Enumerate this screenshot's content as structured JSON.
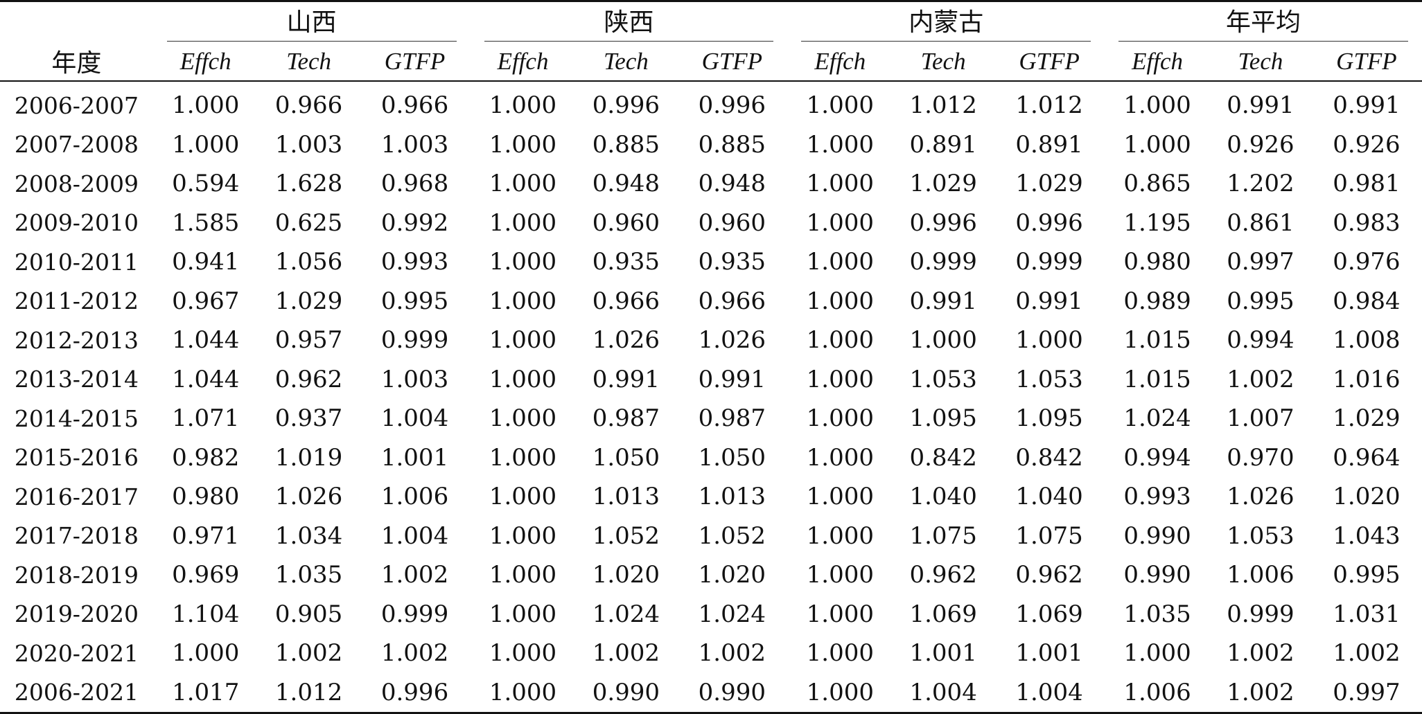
{
  "header": {
    "year_label": "年度",
    "groups": [
      "山西",
      "陕西",
      "内蒙古",
      "年平均"
    ],
    "sub_columns": [
      "Effch",
      "Tech",
      "GTFP"
    ]
  },
  "rows": [
    {
      "year": "2006-2007",
      "values": [
        "1.000",
        "0.966",
        "0.966",
        "1.000",
        "0.996",
        "0.996",
        "1.000",
        "1.012",
        "1.012",
        "1.000",
        "0.991",
        "0.991"
      ]
    },
    {
      "year": "2007-2008",
      "values": [
        "1.000",
        "1.003",
        "1.003",
        "1.000",
        "0.885",
        "0.885",
        "1.000",
        "0.891",
        "0.891",
        "1.000",
        "0.926",
        "0.926"
      ]
    },
    {
      "year": "2008-2009",
      "values": [
        "0.594",
        "1.628",
        "0.968",
        "1.000",
        "0.948",
        "0.948",
        "1.000",
        "1.029",
        "1.029",
        "0.865",
        "1.202",
        "0.981"
      ]
    },
    {
      "year": "2009-2010",
      "values": [
        "1.585",
        "0.625",
        "0.992",
        "1.000",
        "0.960",
        "0.960",
        "1.000",
        "0.996",
        "0.996",
        "1.195",
        "0.861",
        "0.983"
      ]
    },
    {
      "year": "2010-2011",
      "values": [
        "0.941",
        "1.056",
        "0.993",
        "1.000",
        "0.935",
        "0.935",
        "1.000",
        "0.999",
        "0.999",
        "0.980",
        "0.997",
        "0.976"
      ]
    },
    {
      "year": "2011-2012",
      "values": [
        "0.967",
        "1.029",
        "0.995",
        "1.000",
        "0.966",
        "0.966",
        "1.000",
        "0.991",
        "0.991",
        "0.989",
        "0.995",
        "0.984"
      ]
    },
    {
      "year": "2012-2013",
      "values": [
        "1.044",
        "0.957",
        "0.999",
        "1.000",
        "1.026",
        "1.026",
        "1.000",
        "1.000",
        "1.000",
        "1.015",
        "0.994",
        "1.008"
      ]
    },
    {
      "year": "2013-2014",
      "values": [
        "1.044",
        "0.962",
        "1.003",
        "1.000",
        "0.991",
        "0.991",
        "1.000",
        "1.053",
        "1.053",
        "1.015",
        "1.002",
        "1.016"
      ]
    },
    {
      "year": "2014-2015",
      "values": [
        "1.071",
        "0.937",
        "1.004",
        "1.000",
        "0.987",
        "0.987",
        "1.000",
        "1.095",
        "1.095",
        "1.024",
        "1.007",
        "1.029"
      ]
    },
    {
      "year": "2015-2016",
      "values": [
        "0.982",
        "1.019",
        "1.001",
        "1.000",
        "1.050",
        "1.050",
        "1.000",
        "0.842",
        "0.842",
        "0.994",
        "0.970",
        "0.964"
      ]
    },
    {
      "year": "2016-2017",
      "values": [
        "0.980",
        "1.026",
        "1.006",
        "1.000",
        "1.013",
        "1.013",
        "1.000",
        "1.040",
        "1.040",
        "0.993",
        "1.026",
        "1.020"
      ]
    },
    {
      "year": "2017-2018",
      "values": [
        "0.971",
        "1.034",
        "1.004",
        "1.000",
        "1.052",
        "1.052",
        "1.000",
        "1.075",
        "1.075",
        "0.990",
        "1.053",
        "1.043"
      ]
    },
    {
      "year": "2018-2019",
      "values": [
        "0.969",
        "1.035",
        "1.002",
        "1.000",
        "1.020",
        "1.020",
        "1.000",
        "0.962",
        "0.962",
        "0.990",
        "1.006",
        "0.995"
      ]
    },
    {
      "year": "2019-2020",
      "values": [
        "1.104",
        "0.905",
        "0.999",
        "1.000",
        "1.024",
        "1.024",
        "1.000",
        "1.069",
        "1.069",
        "1.035",
        "0.999",
        "1.031"
      ]
    },
    {
      "year": "2020-2021",
      "values": [
        "1.000",
        "1.002",
        "1.002",
        "1.000",
        "1.002",
        "1.002",
        "1.000",
        "1.001",
        "1.001",
        "1.000",
        "1.002",
        "1.002"
      ]
    },
    {
      "year": "2006-2021",
      "values": [
        "1.017",
        "1.012",
        "0.996",
        "1.000",
        "0.990",
        "0.990",
        "1.000",
        "1.004",
        "1.004",
        "1.006",
        "1.002",
        "0.997"
      ]
    }
  ]
}
